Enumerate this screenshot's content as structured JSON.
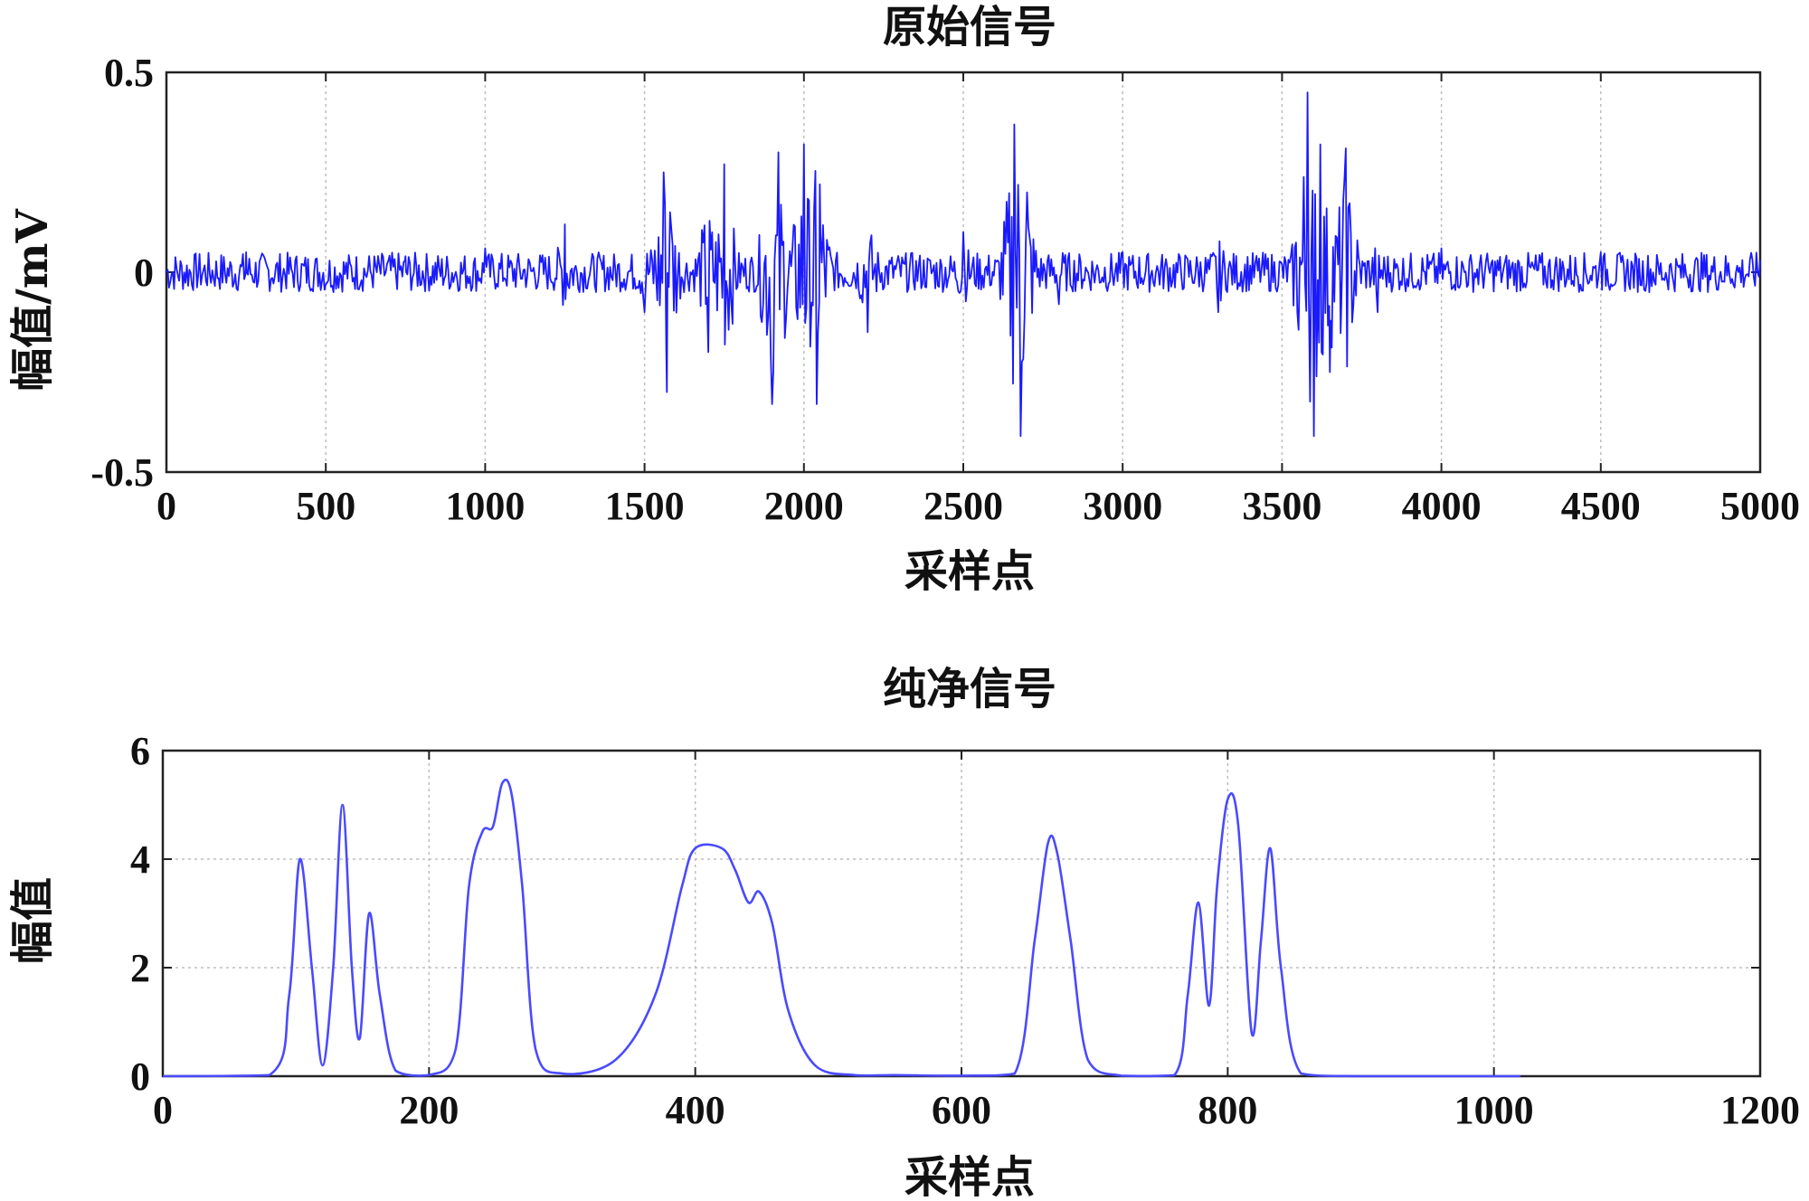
{
  "chart_data": [
    {
      "type": "line",
      "title": "原始信号",
      "xlabel": "采样点",
      "ylabel": "幅值/mV",
      "xlim": [
        0,
        5000
      ],
      "ylim": [
        -0.5,
        0.5
      ],
      "xticks": [
        0,
        500,
        1000,
        1500,
        2000,
        2500,
        3000,
        3500,
        4000,
        4500,
        5000
      ],
      "yticks": [
        -0.5,
        0,
        0.5
      ],
      "xtick_labels": [
        "0",
        "500",
        "1000",
        "1500",
        "2000",
        "2500",
        "3000",
        "3500",
        "4000",
        "4500",
        "5000"
      ],
      "ytick_labels": [
        "-0.5",
        "0",
        "0.5"
      ],
      "grid": "vertical dotted",
      "line_color": "#1a1aff",
      "series": [
        {
          "values_note_free": true,
          "x": [
            0,
            250,
            500,
            750,
            1000,
            1250,
            1500,
            1560,
            1570,
            1580,
            1700,
            1750,
            1900,
            1920,
            2000,
            2040,
            2050,
            2200,
            2500,
            2660,
            2680,
            2700,
            2800,
            3000,
            3300,
            3580,
            3600,
            3620,
            3650,
            3700,
            3800,
            4000,
            4500,
            5000
          ],
          "y": [
            0.0,
            0.05,
            -0.03,
            0.04,
            0.06,
            0.12,
            -0.1,
            0.25,
            -0.3,
            0.15,
            -0.2,
            0.27,
            -0.33,
            0.3,
            0.32,
            -0.33,
            0.22,
            -0.15,
            0.1,
            0.37,
            -0.41,
            0.2,
            -0.08,
            0.05,
            -0.1,
            0.45,
            -0.41,
            0.32,
            -0.25,
            0.31,
            -0.1,
            0.06,
            0.05,
            0.03
          ]
        }
      ]
    },
    {
      "type": "line",
      "title": "纯净信号",
      "xlabel": "采样点",
      "ylabel": "幅值",
      "xlim": [
        0,
        1200
      ],
      "ylim": [
        0,
        6
      ],
      "xticks": [
        0,
        200,
        400,
        600,
        800,
        1000,
        1200
      ],
      "yticks": [
        0,
        2,
        4,
        6
      ],
      "xtick_labels": [
        "0",
        "200",
        "400",
        "600",
        "800",
        "1000",
        "1200"
      ],
      "ytick_labels": [
        "0",
        "2",
        "4",
        "6"
      ],
      "grid": "dotted",
      "line_color": "#4a4aff",
      "series": [
        {
          "x": [
            0,
            80,
            95,
            103,
            112,
            120,
            128,
            135,
            142,
            148,
            155,
            163,
            175,
            200,
            220,
            230,
            240,
            248,
            255,
            262,
            270,
            280,
            300,
            340,
            370,
            390,
            400,
            420,
            430,
            440,
            448,
            458,
            470,
            490,
            520,
            550,
            600,
            640,
            655,
            665,
            672,
            682,
            695,
            720,
            760,
            770,
            778,
            786,
            792,
            800,
            808,
            818,
            825,
            832,
            840,
            855,
            900,
            1020
          ],
          "y": [
            0,
            0.02,
            1.5,
            4.0,
            2.0,
            0.2,
            2.0,
            5.0,
            2.0,
            0.7,
            3.0,
            1.5,
            0.1,
            0.02,
            0.5,
            3.5,
            4.5,
            4.6,
            5.4,
            5.2,
            3.5,
            0.5,
            0.05,
            0.3,
            1.5,
            3.5,
            4.2,
            4.2,
            3.8,
            3.2,
            3.4,
            2.8,
            1.2,
            0.2,
            0.02,
            0.02,
            0.01,
            0.05,
            2.5,
            4.3,
            4.1,
            2.5,
            0.3,
            0.01,
            0.02,
            1.5,
            3.2,
            1.3,
            3.5,
            5.1,
            4.6,
            0.8,
            2.5,
            4.2,
            2.0,
            0.05,
            0,
            0
          ]
        }
      ]
    }
  ]
}
